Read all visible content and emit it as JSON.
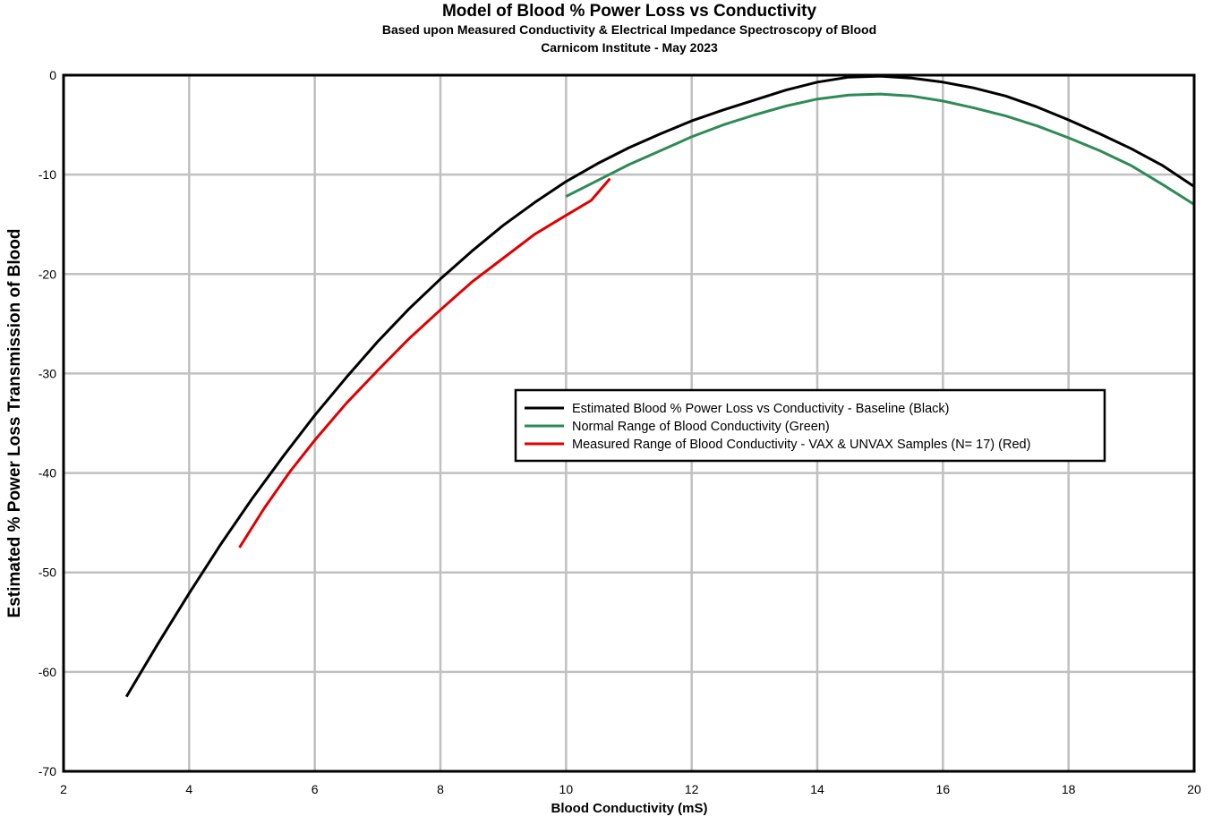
{
  "chart_data": {
    "type": "line",
    "title": "Model of Blood % Power Loss vs Conductivity",
    "subtitle": "Based upon Measured Conductivity & Electrical Impedance Spectroscopy of Blood",
    "subtitle2": "Carnicom Institute - May 2023",
    "xlabel": "Blood Conductivity (mS)",
    "ylabel": "Estimated % Power Loss Transmission of Blood",
    "xlim": [
      2,
      20
    ],
    "ylim": [
      -70,
      0
    ],
    "x_ticks": [
      "2",
      "4",
      "6",
      "8",
      "10",
      "12",
      "14",
      "16",
      "18",
      "20"
    ],
    "y_ticks": [
      "0",
      "-10",
      "-20",
      "-30",
      "-40",
      "-50",
      "-60",
      "-70"
    ],
    "grid": true,
    "legend_position": "center-right",
    "series": [
      {
        "name": "Estimated Blood % Power Loss vs Conductivity - Baseline (Black)",
        "color": "#000000",
        "x": [
          3.0,
          3.5,
          4.0,
          4.5,
          5.0,
          5.5,
          6.0,
          6.5,
          7.0,
          7.5,
          8.0,
          8.5,
          9.0,
          9.5,
          10.0,
          10.5,
          11.0,
          11.5,
          12.0,
          12.5,
          13.0,
          13.5,
          14.0,
          14.5,
          15.0,
          15.5,
          16.0,
          16.5,
          17.0,
          17.5,
          18.0,
          18.5,
          19.0,
          19.5,
          20.0
        ],
        "y": [
          -62.5,
          -57.2,
          -52.1,
          -47.2,
          -42.6,
          -38.3,
          -34.2,
          -30.4,
          -26.8,
          -23.5,
          -20.5,
          -17.7,
          -15.1,
          -12.8,
          -10.7,
          -8.9,
          -7.3,
          -5.9,
          -4.6,
          -3.5,
          -2.5,
          -1.5,
          -0.7,
          -0.2,
          -0.1,
          -0.3,
          -0.7,
          -1.3,
          -2.1,
          -3.2,
          -4.5,
          -5.9,
          -7.4,
          -9.1,
          -11.2
        ]
      },
      {
        "name": "Normal Range of Blood Conductivity (Green)",
        "color": "#2e8b57",
        "x": [
          10.0,
          10.5,
          11.0,
          11.5,
          12.0,
          12.5,
          13.0,
          13.5,
          14.0,
          14.5,
          15.0,
          15.5,
          16.0,
          16.5,
          17.0,
          17.5,
          18.0,
          18.5,
          19.0,
          19.5,
          20.0
        ],
        "y": [
          -12.2,
          -10.6,
          -9.0,
          -7.6,
          -6.2,
          -5.0,
          -4.0,
          -3.1,
          -2.4,
          -2.0,
          -1.9,
          -2.1,
          -2.6,
          -3.3,
          -4.1,
          -5.1,
          -6.3,
          -7.6,
          -9.1,
          -11.0,
          -13.0
        ]
      },
      {
        "name": "Measured Range of Blood Conductivity - VAX & UNVAX  Samples (N= 17) (Red)",
        "color": "#e00000",
        "x": [
          4.8,
          5.2,
          5.6,
          6.0,
          6.5,
          7.0,
          7.5,
          8.0,
          8.5,
          9.0,
          9.5,
          10.0,
          10.4,
          10.7
        ],
        "y": [
          -47.5,
          -43.5,
          -39.9,
          -36.7,
          -33.0,
          -29.7,
          -26.5,
          -23.6,
          -20.8,
          -18.4,
          -16.0,
          -14.1,
          -12.6,
          -10.4
        ]
      }
    ]
  }
}
